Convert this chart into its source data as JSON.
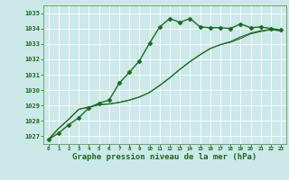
{
  "background_color": "#cce8e8",
  "plot_bg_color": "#cce8e8",
  "grid_color": "#aacccc",
  "line_color": "#1a6b1a",
  "marker_color": "#1a6b1a",
  "xlabel": "Graphe pression niveau de la mer (hPa)",
  "xlabel_fontsize": 6.5,
  "ylim": [
    1026.5,
    1035.5
  ],
  "xlim": [
    -0.5,
    23.5
  ],
  "series": [
    {
      "x": [
        0,
        1,
        2,
        3,
        4,
        5,
        6,
        7,
        8,
        9,
        10,
        11,
        12,
        13,
        14,
        15,
        16,
        17,
        18,
        19,
        20,
        21,
        22,
        23
      ],
      "y": [
        1026.8,
        1027.2,
        1027.75,
        1028.2,
        1028.85,
        1029.15,
        1029.35,
        1030.45,
        1031.15,
        1031.9,
        1033.05,
        1034.1,
        1034.65,
        1034.4,
        1034.65,
        1034.1,
        1034.05,
        1034.05,
        1034.0,
        1034.3,
        1034.05,
        1034.1,
        1034.0,
        1033.9
      ],
      "marker": "D",
      "markersize": 2.5,
      "linewidth": 1.0,
      "zorder": 4
    },
    {
      "x": [
        0,
        1,
        2,
        3,
        4,
        5,
        6,
        7,
        8,
        9,
        10,
        11,
        12,
        13,
        14,
        15,
        16,
        17,
        18,
        19,
        20,
        21,
        22,
        23
      ],
      "y": [
        1026.8,
        1027.5,
        1028.1,
        1028.75,
        1028.9,
        1029.05,
        1029.1,
        1029.2,
        1029.35,
        1029.55,
        1029.85,
        1030.3,
        1030.8,
        1031.35,
        1031.85,
        1032.3,
        1032.7,
        1032.95,
        1033.15,
        1033.45,
        1033.7,
        1033.85,
        1033.95,
        1033.85
      ],
      "marker": null,
      "markersize": 0,
      "linewidth": 0.85,
      "zorder": 3
    },
    {
      "x": [
        0,
        1,
        2,
        3,
        4,
        5,
        6,
        7,
        8,
        9,
        10,
        11,
        12,
        13,
        14,
        15,
        16,
        17,
        18,
        19,
        20,
        21,
        22,
        23
      ],
      "y": [
        1026.8,
        1027.5,
        1028.1,
        1028.75,
        1028.9,
        1029.05,
        1029.1,
        1029.2,
        1029.35,
        1029.55,
        1029.85,
        1030.3,
        1030.8,
        1031.35,
        1031.85,
        1032.3,
        1032.7,
        1032.95,
        1033.1,
        1033.35,
        1033.65,
        1033.8,
        1033.92,
        1033.85
      ],
      "marker": null,
      "markersize": 0,
      "linewidth": 0.7,
      "zorder": 2
    }
  ]
}
